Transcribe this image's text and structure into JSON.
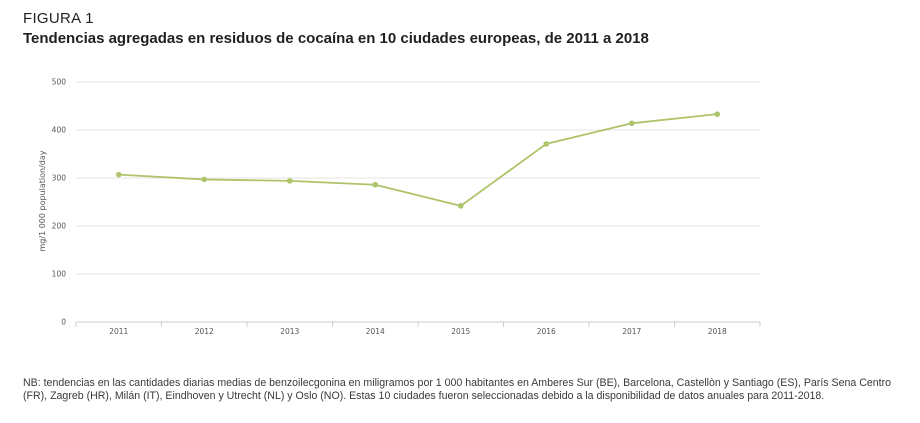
{
  "figure": {
    "label": "FIGURA 1",
    "title": "Tendencias agregadas en residuos de cocaína en 10 ciudades europeas, de 2011 a 2018",
    "note": "NB: tendencias en las cantidades diarias medias de benzoilecgonina en miligramos por 1 000 habitantes en Amberes Sur (BE), Barcelona, Castellòn y Santiago (ES), París Sena Centro (FR), Zagreb (HR), Milán (IT), Eindhoven y Utrecht (NL) y Oslo (NO). Estas 10 ciudades fueron seleccionadas debido a la disponibilidad de datos anuales para 2011-2018."
  },
  "colors": {
    "line": "#aec46a",
    "grid": "#e6e6e6",
    "axis": "#cccccc"
  },
  "chart_data": {
    "type": "line",
    "title": "",
    "xlabel": "",
    "ylabel": "mg/1 000 population/day",
    "categories": [
      "2011",
      "2012",
      "2013",
      "2014",
      "2015",
      "2016",
      "2017",
      "2018"
    ],
    "series": [
      {
        "values": [
          307,
          297,
          294,
          286,
          242,
          371,
          414,
          433
        ]
      }
    ],
    "ylim": [
      0,
      500
    ],
    "yticks": [
      0,
      100,
      200,
      300,
      400,
      500
    ],
    "grid": true,
    "legend": "none"
  }
}
